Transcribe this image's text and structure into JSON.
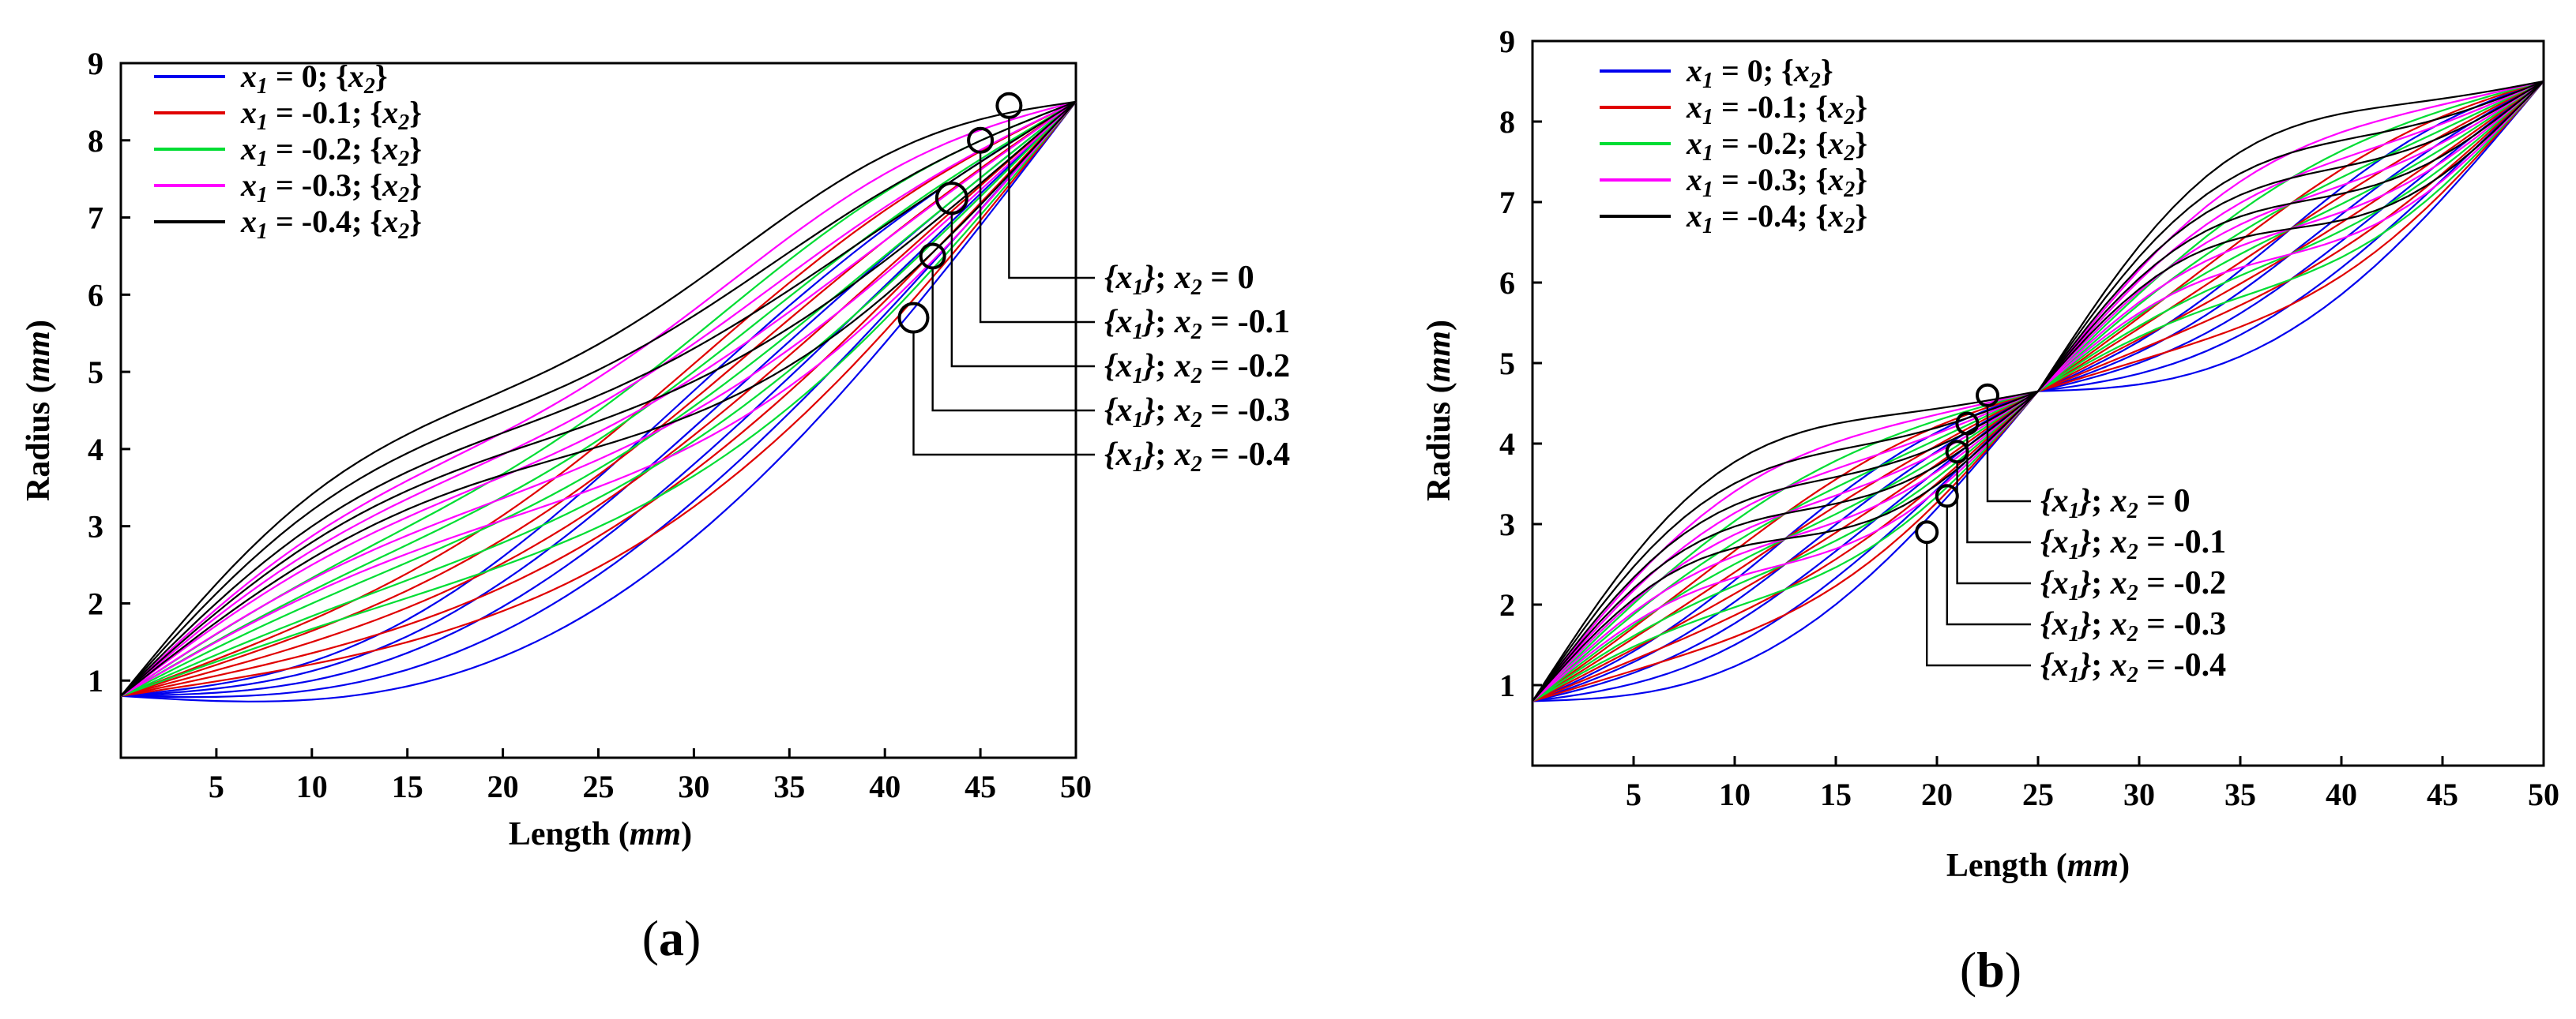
{
  "chart_data": [
    {
      "panel_label": "(a)",
      "type": "line",
      "xlabel": "Length (mm)",
      "ylabel": "Radius (mm)",
      "xlim": [
        0,
        50
      ],
      "ylim": [
        0,
        9
      ],
      "xticks": [
        5,
        10,
        15,
        20,
        25,
        30,
        35,
        40,
        45,
        50
      ],
      "yticks": [
        1,
        2,
        3,
        4,
        5,
        6,
        7,
        8,
        9
      ],
      "legend_position": "top-left",
      "start_point": [
        0,
        0.8
      ],
      "end_point": [
        50,
        8.5
      ],
      "x2_values": [
        0,
        -0.1,
        -0.2,
        -0.3,
        -0.4
      ],
      "series": [
        {
          "name": "x1 = 0; {x2}",
          "x1": 0,
          "color": "#0000ee"
        },
        {
          "name": "x1 = -0.1; {x2}",
          "x1": -0.1,
          "color": "#e00000"
        },
        {
          "name": "x1 = -0.2; {x2}",
          "x1": -0.2,
          "color": "#00dd33"
        },
        {
          "name": "x1 = -0.3; {x2}",
          "x1": -0.3,
          "color": "#ff00ff"
        },
        {
          "name": "x1 = -0.4; {x2}",
          "x1": -0.4,
          "color": "#000000"
        }
      ],
      "annotations": [
        {
          "text": "{x1}; x2 = 0",
          "point": [
            46.5,
            8.45
          ]
        },
        {
          "text": "{x1}; x2 = -0.1",
          "point": [
            45,
            8.0
          ]
        },
        {
          "text": "{x1}; x2 = -0.2",
          "point": [
            43.5,
            7.25
          ]
        },
        {
          "text": "{x1}; x2 = -0.3",
          "point": [
            42.5,
            6.5
          ]
        },
        {
          "text": "{x1}; x2 = -0.4",
          "point": [
            41.5,
            5.7
          ]
        }
      ]
    },
    {
      "panel_label": "(b)",
      "type": "line",
      "xlabel": "Length (mm)",
      "ylabel": "Radius (mm)",
      "xlim": [
        0,
        50
      ],
      "ylim": [
        0,
        9
      ],
      "xticks": [
        5,
        10,
        15,
        20,
        25,
        30,
        35,
        40,
        45,
        50
      ],
      "yticks": [
        1,
        2,
        3,
        4,
        5,
        6,
        7,
        8,
        9
      ],
      "legend_position": "top-left",
      "start_point": [
        0,
        0.8
      ],
      "mid_point": [
        25,
        4.65
      ],
      "end_point": [
        50,
        8.5
      ],
      "x2_values": [
        0,
        -0.1,
        -0.2,
        -0.3,
        -0.4
      ],
      "series": [
        {
          "name": "x1 = 0; {x2}",
          "x1": 0,
          "color": "#0000ee"
        },
        {
          "name": "x1 = -0.1; {x2}",
          "x1": -0.1,
          "color": "#e00000"
        },
        {
          "name": "x1 = -0.2; {x2}",
          "x1": -0.2,
          "color": "#00dd33"
        },
        {
          "name": "x1 = -0.3; {x2}",
          "x1": -0.3,
          "color": "#ff00ff"
        },
        {
          "name": "x1 = -0.4; {x2}",
          "x1": -0.4,
          "color": "#000000"
        }
      ],
      "annotations": [
        {
          "text": "{x1}; x2 = 0",
          "point": [
            22.5,
            4.6
          ]
        },
        {
          "text": "{x1}; x2 = -0.1",
          "point": [
            21.5,
            4.25
          ]
        },
        {
          "text": "{x1}; x2 = -0.2",
          "point": [
            21,
            3.9
          ]
        },
        {
          "text": "{x1}; x2 = -0.3",
          "point": [
            20.5,
            3.35
          ]
        },
        {
          "text": "{x1}; x2 = -0.4",
          "point": [
            19.5,
            2.9
          ]
        }
      ]
    }
  ],
  "text": {
    "axis_parts": {
      "length_word": "Length",
      "radius_word": "Radius",
      "unit": "mm"
    },
    "legend_parts": {
      "var1": "x",
      "sub1": "1",
      "var2": "x",
      "sub2": "2"
    },
    "anno_parts": {
      "prefix_var": "x",
      "prefix_sub": "1",
      "var": "x",
      "sub": "2"
    }
  }
}
